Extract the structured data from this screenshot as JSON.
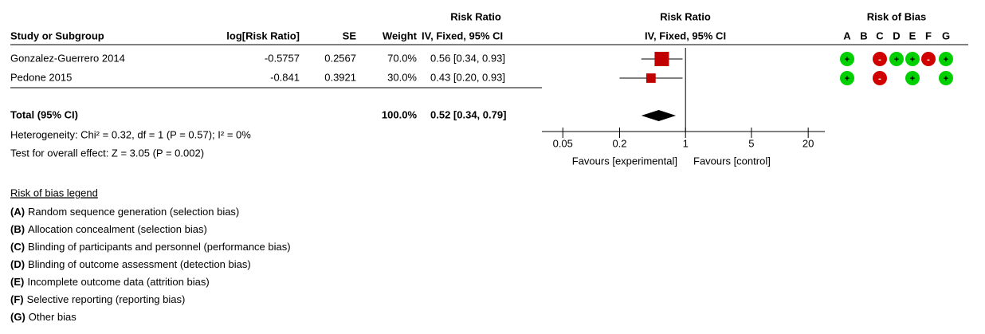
{
  "header": {
    "rr_title": "Risk Ratio",
    "plot_title": "Risk Ratio",
    "bias_title": "Risk of Bias"
  },
  "columns": {
    "study": "Study or Subgroup",
    "log_rr": "log[Risk Ratio]",
    "se": "SE",
    "weight": "Weight",
    "ci": "IV, Fixed, 95% CI",
    "plot": "IV, Fixed, 95% CI"
  },
  "bias_columns": [
    "A",
    "B",
    "C",
    "D",
    "E",
    "F",
    "G"
  ],
  "studies": [
    {
      "name": "Gonzalez-Guerrero 2014",
      "log_rr": -0.5757,
      "se": 0.2567,
      "weight": {
        "value": 70.0,
        "label": "70.0%"
      },
      "ci": {
        "value": 0.56,
        "lo": 0.34,
        "hi": 0.93,
        "label": "0.56 [0.34, 0.93]"
      },
      "bias": [
        "+",
        null,
        "-",
        "+",
        "+",
        "-",
        "+"
      ]
    },
    {
      "name": "Pedone 2015",
      "log_rr": -0.841,
      "se": 0.3921,
      "weight": {
        "value": 30.0,
        "label": "30.0%"
      },
      "ci": {
        "value": 0.43,
        "lo": 0.2,
        "hi": 0.93,
        "label": "0.43 [0.20, 0.93]"
      },
      "bias": [
        "+",
        null,
        "-",
        null,
        "+",
        null,
        "+"
      ]
    }
  ],
  "total": {
    "name": "Total (95% CI)",
    "weight": {
      "value": 100.0,
      "label": "100.0%"
    },
    "ci": {
      "value": 0.52,
      "lo": 0.34,
      "hi": 0.79,
      "label": "0.52 [0.34, 0.79]"
    }
  },
  "heterogeneity": "Heterogeneity: Chi² = 0.32, df = 1 (P = 0.57); I² = 0%",
  "overall_effect": "Test for overall effect: Z = 3.05 (P = 0.002)",
  "axis": {
    "xlim": [
      0.03,
      30
    ],
    "log_scale": true,
    "xticks": [
      0.05,
      0.2,
      1,
      5,
      20
    ],
    "left_label": "Favours [experimental]",
    "right_label": "Favours [control]"
  },
  "legend": {
    "title": "Risk of bias legend",
    "items": [
      {
        "key": "(A)",
        "text": "Random sequence generation (selection bias)"
      },
      {
        "key": "(B)",
        "text": "Allocation concealment (selection bias)"
      },
      {
        "key": "(C)",
        "text": "Blinding of participants and personnel (performance bias)"
      },
      {
        "key": "(D)",
        "text": "Blinding of outcome assessment (detection bias)"
      },
      {
        "key": "(E)",
        "text": "Incomplete outcome data (attrition bias)"
      },
      {
        "key": "(F)",
        "text": "Selective reporting (reporting bias)"
      },
      {
        "key": "(G)",
        "text": "Other bias"
      }
    ]
  }
}
